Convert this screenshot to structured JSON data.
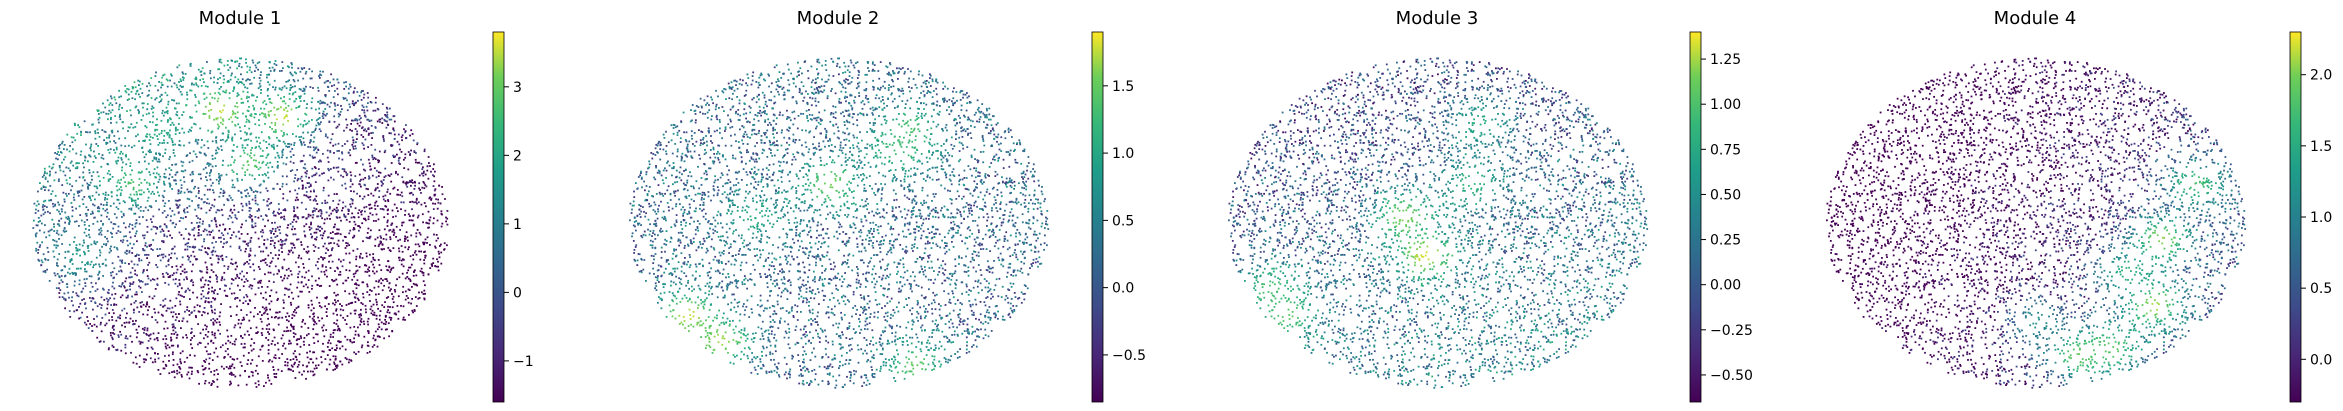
{
  "chart_data": [
    {
      "type": "scatter",
      "title": "Module 1",
      "colormap": "viridis",
      "colorbar": {
        "vmin": -1.6,
        "vmax": 3.8,
        "ticks": [
          -1,
          0,
          1,
          2,
          3
        ],
        "tick_labels": [
          "−1",
          "0",
          "1",
          "2",
          "3"
        ]
      },
      "baseline": -0.9,
      "hotspots": [
        {
          "x": 0.45,
          "y": 0.84,
          "value": 3.6
        },
        {
          "x": 0.6,
          "y": 0.82,
          "value": 3.6
        },
        {
          "x": 0.52,
          "y": 0.68,
          "value": 3.0
        },
        {
          "x": 0.24,
          "y": 0.62,
          "value": 2.8
        },
        {
          "x": 0.12,
          "y": 0.4,
          "value": 1.8
        },
        {
          "x": 0.3,
          "y": 0.78,
          "value": 2.2
        }
      ],
      "gradient": {
        "dir": [
          -0.6,
          0.8
        ],
        "strength": 2.5
      }
    },
    {
      "type": "scatter",
      "title": "Module 2",
      "colormap": "viridis",
      "colorbar": {
        "vmin": -0.85,
        "vmax": 1.9,
        "ticks": [
          -0.5,
          0.0,
          0.5,
          1.0,
          1.5
        ],
        "tick_labels": [
          "−0.5",
          "0.0",
          "0.5",
          "1.0",
          "1.5"
        ]
      },
      "baseline": 0.2,
      "hotspots": [
        {
          "x": 0.14,
          "y": 0.22,
          "value": 1.8
        },
        {
          "x": 0.22,
          "y": 0.14,
          "value": 1.7
        },
        {
          "x": 0.48,
          "y": 0.62,
          "value": 1.6
        },
        {
          "x": 0.67,
          "y": 0.78,
          "value": 1.4
        },
        {
          "x": 0.64,
          "y": 0.72,
          "value": 1.3
        },
        {
          "x": 0.68,
          "y": 0.07,
          "value": 1.5
        },
        {
          "x": 0.3,
          "y": 0.52,
          "value": 1.1
        }
      ],
      "gradient": {
        "dir": [
          0,
          0
        ],
        "strength": 0
      }
    },
    {
      "type": "scatter",
      "title": "Module 3",
      "colormap": "viridis",
      "colorbar": {
        "vmin": -0.65,
        "vmax": 1.4,
        "ticks": [
          -0.5,
          -0.25,
          0.0,
          0.25,
          0.5,
          0.75,
          1.0,
          1.25
        ],
        "tick_labels": [
          "−0.50",
          "−0.25",
          "0.00",
          "0.25",
          "0.50",
          "0.75",
          "1.00",
          "1.25"
        ]
      },
      "baseline": 0.1,
      "hotspots": [
        {
          "x": 0.47,
          "y": 0.4,
          "value": 1.35
        },
        {
          "x": 0.42,
          "y": 0.52,
          "value": 1.2
        },
        {
          "x": 0.14,
          "y": 0.22,
          "value": 1.1
        },
        {
          "x": 0.1,
          "y": 0.3,
          "value": 1.0
        },
        {
          "x": 0.58,
          "y": 0.62,
          "value": 0.9
        },
        {
          "x": 0.6,
          "y": 0.8,
          "value": 0.8
        }
      ],
      "gradient": {
        "dir": [
          0.3,
          -0.7
        ],
        "strength": 0.4
      }
    },
    {
      "type": "scatter",
      "title": "Module 4",
      "colormap": "viridis",
      "colorbar": {
        "vmin": -0.3,
        "vmax": 2.3,
        "ticks": [
          0.0,
          0.5,
          1.0,
          1.5,
          2.0
        ],
        "tick_labels": [
          "0.0",
          "0.5",
          "1.0",
          "1.5",
          "2.0"
        ]
      },
      "baseline": -0.2,
      "hotspots": [
        {
          "x": 0.8,
          "y": 0.45,
          "value": 2.1
        },
        {
          "x": 0.78,
          "y": 0.25,
          "value": 2.2
        },
        {
          "x": 0.6,
          "y": 0.1,
          "value": 2.0
        },
        {
          "x": 0.68,
          "y": 0.12,
          "value": 1.9
        },
        {
          "x": 0.88,
          "y": 0.62,
          "value": 1.8
        },
        {
          "x": 0.72,
          "y": 0.35,
          "value": 1.6
        },
        {
          "x": 0.5,
          "y": 0.2,
          "value": 1.2
        }
      ],
      "gradient": {
        "dir": [
          0.8,
          -0.3
        ],
        "strength": 0.9
      }
    }
  ]
}
